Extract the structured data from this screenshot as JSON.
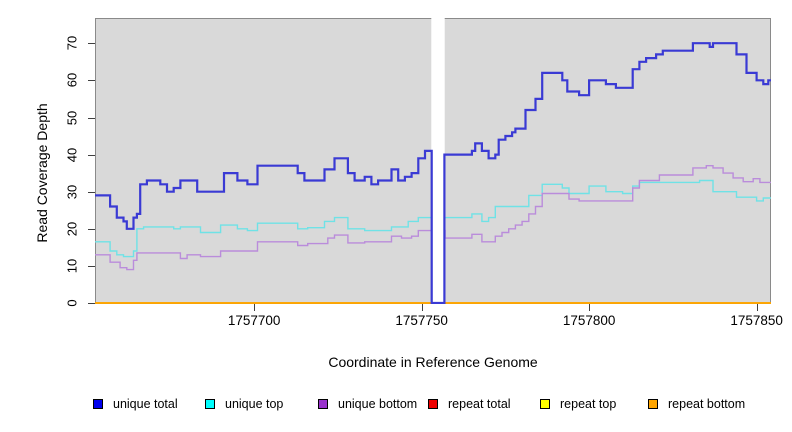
{
  "y_axis": {
    "label": "Read Coverage Depth",
    "ticks": [
      0,
      10,
      20,
      30,
      40,
      50,
      60,
      70
    ]
  },
  "x_axis": {
    "label": "Coordinate in Reference Genome",
    "ticks": [
      1757700,
      1757750,
      1757800,
      1757850
    ]
  },
  "legend": [
    {
      "label": "unique total",
      "color": "#0000EE"
    },
    {
      "label": "unique top",
      "color": "#00FFFF"
    },
    {
      "label": "unique bottom",
      "color": "#9932CC"
    },
    {
      "label": "repeat total",
      "color": "#EE0000"
    },
    {
      "label": "repeat top",
      "color": "#FFFF00"
    },
    {
      "label": "repeat bottom",
      "color": "#FFA500"
    }
  ],
  "colors": {
    "panel_background": "#d9d9d9",
    "panel_border": "#8a8a8a",
    "gap_band": "#ffffff",
    "axis_text": "#000000"
  },
  "chart_data": {
    "type": "line",
    "subtype": "step",
    "title": "",
    "xlabel": "Coordinate in Reference Genome",
    "ylabel": "Read Coverage Depth",
    "x_range": [
      1757652.5,
      1757854.3
    ],
    "y_range": [
      0,
      76.8
    ],
    "y_ticks": [
      0,
      10,
      20,
      30,
      40,
      50,
      60,
      70
    ],
    "grid": false,
    "legend_position": "bottom",
    "gap_region": {
      "start": 1757752.9,
      "end": 1757756.9,
      "note": "white masked band; unique total drops to 0"
    },
    "series": [
      {
        "name": "repeat total",
        "line_color": "#DD0000",
        "width": 1.6,
        "points": [
          [
            1757652.5,
            0
          ]
        ]
      },
      {
        "name": "repeat top",
        "line_color": "#FFFF00",
        "width": 1.6,
        "points": [
          [
            1757652.5,
            0
          ]
        ]
      },
      {
        "name": "repeat bottom",
        "line_color": "#FFA500",
        "width": 1.8,
        "points": [
          [
            1757652.5,
            0
          ]
        ]
      },
      {
        "name": "unique top",
        "line_color": "#6FE2E6",
        "width": 1.4,
        "points": [
          [
            1757652.5,
            16.5
          ],
          [
            1757657,
            14
          ],
          [
            1757659,
            13
          ],
          [
            1757661,
            12.5
          ],
          [
            1757664,
            14
          ],
          [
            1757665,
            20
          ],
          [
            1757667,
            20.5
          ],
          [
            1757676,
            20
          ],
          [
            1757678,
            20.5
          ],
          [
            1757684,
            19
          ],
          [
            1757690,
            21
          ],
          [
            1757695,
            20
          ],
          [
            1757698,
            19.5
          ],
          [
            1757701,
            21.5
          ],
          [
            1757713,
            20
          ],
          [
            1757716,
            20.3
          ],
          [
            1757721,
            22
          ],
          [
            1757724,
            23
          ],
          [
            1757728,
            20
          ],
          [
            1757733,
            19.5
          ],
          [
            1757741,
            20.5
          ],
          [
            1757746,
            22
          ],
          [
            1757749,
            23
          ],
          [
            1757757,
            23
          ],
          [
            1757765,
            24
          ],
          [
            1757768,
            22
          ],
          [
            1757770,
            23
          ],
          [
            1757772,
            26
          ],
          [
            1757782,
            29
          ],
          [
            1757786,
            32
          ],
          [
            1757792,
            31
          ],
          [
            1757794,
            29.5
          ],
          [
            1757800,
            31.5
          ],
          [
            1757805,
            30
          ],
          [
            1757810,
            29.5
          ],
          [
            1757813,
            31.5
          ],
          [
            1757815,
            32.5
          ],
          [
            1757833,
            33
          ],
          [
            1757837,
            30
          ],
          [
            1757844,
            28.5
          ],
          [
            1757850,
            27.5
          ],
          [
            1757852,
            28.3
          ]
        ]
      },
      {
        "name": "unique bottom",
        "line_color": "#BA8CDB",
        "width": 1.4,
        "points": [
          [
            1757652.5,
            13
          ],
          [
            1757657,
            11
          ],
          [
            1757660,
            9.5
          ],
          [
            1757662,
            9
          ],
          [
            1757664,
            11.5
          ],
          [
            1757665,
            13.5
          ],
          [
            1757678,
            12
          ],
          [
            1757680,
            13
          ],
          [
            1757684,
            12.5
          ],
          [
            1757690,
            14
          ],
          [
            1757701,
            16.5
          ],
          [
            1757713,
            15.5
          ],
          [
            1757716,
            16
          ],
          [
            1757722,
            17.5
          ],
          [
            1757724,
            18.3
          ],
          [
            1757728,
            16.2
          ],
          [
            1757733,
            16.5
          ],
          [
            1757741,
            18
          ],
          [
            1757744,
            17.5
          ],
          [
            1757747,
            18
          ],
          [
            1757749,
            19.5
          ],
          [
            1757757,
            17.5
          ],
          [
            1757765,
            18.5
          ],
          [
            1757768,
            16.5
          ],
          [
            1757772,
            18
          ],
          [
            1757774,
            19
          ],
          [
            1757776,
            20
          ],
          [
            1757778,
            21
          ],
          [
            1757780,
            22
          ],
          [
            1757782,
            24
          ],
          [
            1757784,
            26
          ],
          [
            1757786,
            29.5
          ],
          [
            1757794,
            28
          ],
          [
            1757797,
            27.5
          ],
          [
            1757813,
            31
          ],
          [
            1757815,
            33
          ],
          [
            1757821,
            34.5
          ],
          [
            1757831,
            36.4
          ],
          [
            1757835,
            37
          ],
          [
            1757837,
            36.4
          ],
          [
            1757840,
            35
          ],
          [
            1757843,
            33.7
          ],
          [
            1757846,
            32.7
          ],
          [
            1757849,
            33.5
          ],
          [
            1757851,
            32.5
          ]
        ]
      },
      {
        "name": "unique total",
        "line_color": "#3A3AD4",
        "width": 2.2,
        "points": [
          [
            1757652.5,
            29
          ],
          [
            1757657,
            26
          ],
          [
            1757659,
            23
          ],
          [
            1757661,
            22
          ],
          [
            1757662,
            20
          ],
          [
            1757664,
            23
          ],
          [
            1757665,
            24
          ],
          [
            1757666,
            32
          ],
          [
            1757668,
            33
          ],
          [
            1757672,
            32
          ],
          [
            1757674,
            30
          ],
          [
            1757676,
            31
          ],
          [
            1757678,
            33
          ],
          [
            1757683,
            30
          ],
          [
            1757691,
            35
          ],
          [
            1757695,
            33
          ],
          [
            1757698,
            32
          ],
          [
            1757701,
            37
          ],
          [
            1757713,
            35
          ],
          [
            1757715,
            33
          ],
          [
            1757721,
            36
          ],
          [
            1757724,
            39
          ],
          [
            1757728,
            35
          ],
          [
            1757730,
            33
          ],
          [
            1757733,
            34
          ],
          [
            1757735,
            32
          ],
          [
            1757737,
            33
          ],
          [
            1757741,
            36
          ],
          [
            1757743,
            33
          ],
          [
            1757745,
            34
          ],
          [
            1757747,
            35
          ],
          [
            1757749,
            39
          ],
          [
            1757751,
            41
          ],
          [
            1757753,
            0
          ],
          [
            1757756.8,
            40
          ],
          [
            1757765,
            41
          ],
          [
            1757766,
            43
          ],
          [
            1757768,
            41
          ],
          [
            1757770,
            39
          ],
          [
            1757772,
            40
          ],
          [
            1757773,
            44
          ],
          [
            1757775,
            45
          ],
          [
            1757777,
            46
          ],
          [
            1757778,
            47
          ],
          [
            1757781,
            52
          ],
          [
            1757784,
            55
          ],
          [
            1757786,
            62
          ],
          [
            1757792,
            60
          ],
          [
            1757793.5,
            57
          ],
          [
            1757797,
            56
          ],
          [
            1757800,
            60
          ],
          [
            1757805,
            59
          ],
          [
            1757808,
            58
          ],
          [
            1757813,
            63
          ],
          [
            1757815,
            65
          ],
          [
            1757817,
            66
          ],
          [
            1757820,
            67
          ],
          [
            1757822,
            68
          ],
          [
            1757831,
            70
          ],
          [
            1757836,
            69
          ],
          [
            1757837,
            70
          ],
          [
            1757844,
            67
          ],
          [
            1757847,
            62
          ],
          [
            1757850,
            60
          ],
          [
            1757852,
            59
          ],
          [
            1757853.5,
            60
          ]
        ]
      }
    ]
  }
}
